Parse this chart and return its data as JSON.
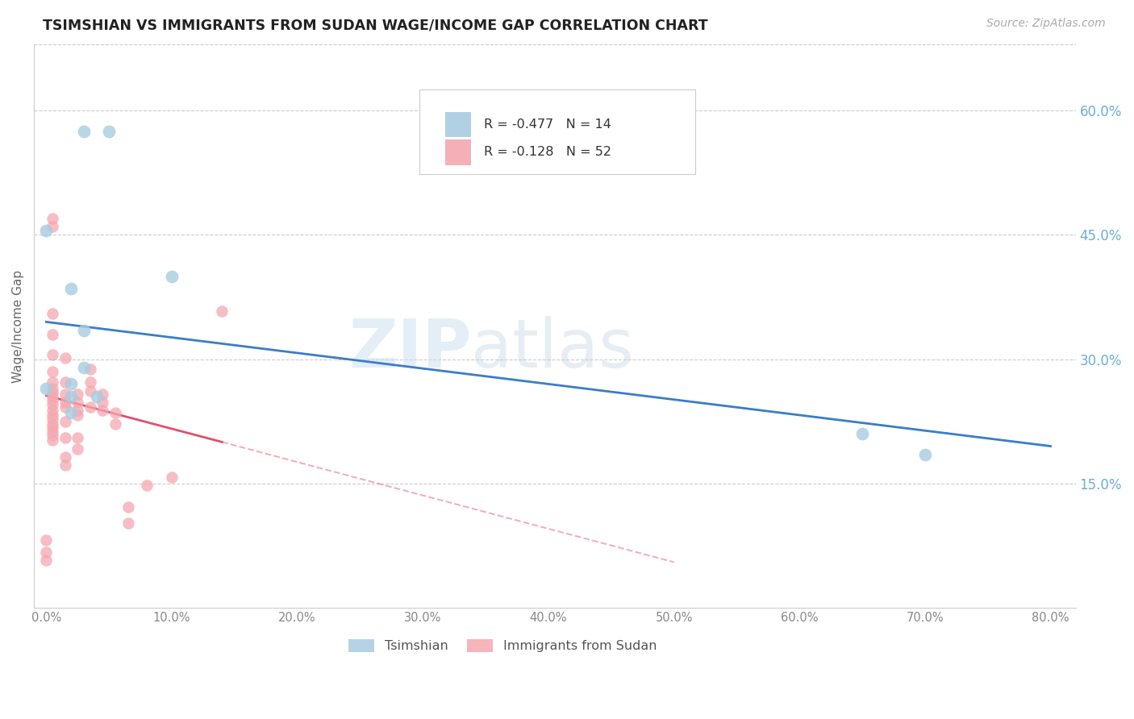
{
  "title": "TSIMSHIAN VS IMMIGRANTS FROM SUDAN WAGE/INCOME GAP CORRELATION CHART",
  "source": "Source: ZipAtlas.com",
  "ylabel": "Wage/Income Gap",
  "xlabel_ticks": [
    "0.0%",
    "10.0%",
    "20.0%",
    "30.0%",
    "40.0%",
    "50.0%",
    "60.0%",
    "70.0%",
    "80.0%"
  ],
  "xlabel_vals": [
    0.0,
    0.1,
    0.2,
    0.3,
    0.4,
    0.5,
    0.6,
    0.7,
    0.8
  ],
  "ytick_labels": [
    "15.0%",
    "30.0%",
    "45.0%",
    "60.0%"
  ],
  "ytick_vals": [
    0.15,
    0.3,
    0.45,
    0.6
  ],
  "xlim": [
    -0.01,
    0.82
  ],
  "ylim": [
    0.0,
    0.68
  ],
  "legend_blue_r": "-0.477",
  "legend_blue_n": "14",
  "legend_pink_r": "-0.128",
  "legend_pink_n": "52",
  "legend_label_blue": "Tsimshian",
  "legend_label_pink": "Immigrants from Sudan",
  "blue_color": "#a8cce0",
  "pink_color": "#f4a8b0",
  "trendline_blue_color": "#3a7dc9",
  "trendline_pink_color": "#e05070",
  "watermark_zip": "ZIP",
  "watermark_atlas": "atlas",
  "background_color": "#ffffff",
  "grid_color": "#cccccc",
  "title_color": "#222222",
  "axis_tick_color": "#888888",
  "right_tick_color": "#6baed6",
  "blue_scatter_x": [
    0.03,
    0.05,
    0.0,
    0.02,
    0.03,
    0.03,
    0.02,
    0.04,
    0.65,
    0.7,
    0.1,
    0.0,
    0.02,
    0.02
  ],
  "blue_scatter_y": [
    0.575,
    0.575,
    0.455,
    0.385,
    0.335,
    0.29,
    0.27,
    0.255,
    0.21,
    0.185,
    0.4,
    0.265,
    0.255,
    0.235
  ],
  "pink_scatter_x": [
    0.005,
    0.005,
    0.005,
    0.005,
    0.005,
    0.005,
    0.005,
    0.005,
    0.005,
    0.005,
    0.005,
    0.005,
    0.005,
    0.005,
    0.005,
    0.005,
    0.005,
    0.005,
    0.005,
    0.005,
    0.015,
    0.015,
    0.015,
    0.015,
    0.015,
    0.015,
    0.015,
    0.015,
    0.015,
    0.025,
    0.025,
    0.025,
    0.025,
    0.025,
    0.025,
    0.035,
    0.035,
    0.035,
    0.035,
    0.045,
    0.045,
    0.045,
    0.055,
    0.055,
    0.065,
    0.065,
    0.08,
    0.1,
    0.14,
    0.0,
    0.0,
    0.0
  ],
  "pink_scatter_y": [
    0.47,
    0.46,
    0.355,
    0.33,
    0.305,
    0.285,
    0.272,
    0.265,
    0.26,
    0.255,
    0.25,
    0.245,
    0.238,
    0.232,
    0.228,
    0.222,
    0.218,
    0.213,
    0.208,
    0.202,
    0.302,
    0.272,
    0.258,
    0.248,
    0.242,
    0.225,
    0.205,
    0.182,
    0.172,
    0.258,
    0.248,
    0.238,
    0.232,
    0.205,
    0.192,
    0.288,
    0.272,
    0.262,
    0.242,
    0.258,
    0.248,
    0.238,
    0.235,
    0.222,
    0.122,
    0.102,
    0.148,
    0.158,
    0.358,
    0.082,
    0.067,
    0.057
  ],
  "blue_trendline_x0": 0.0,
  "blue_trendline_y0": 0.345,
  "blue_trendline_x1": 0.8,
  "blue_trendline_y1": 0.195,
  "pink_trendline_solid_x0": 0.0,
  "pink_trendline_solid_y0": 0.256,
  "pink_trendline_solid_x1": 0.14,
  "pink_trendline_solid_y1": 0.2,
  "pink_trendline_dash_x1": 0.5,
  "pink_trendline_dash_y1": 0.055
}
